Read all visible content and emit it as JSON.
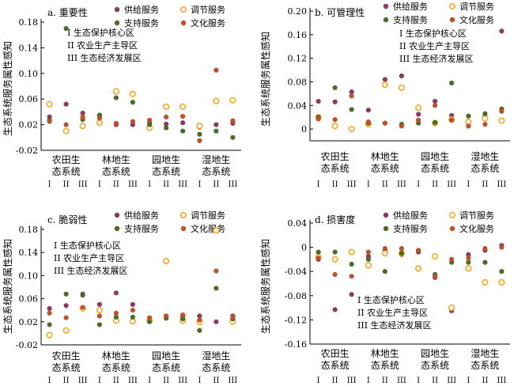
{
  "colors": {
    "supply": "#8b3a62",
    "regulating": "#f5a623",
    "support": "#4b6b2a",
    "cultural": "#c0502a"
  },
  "chart_data": [
    {
      "type": "scatter",
      "title": "a. 重要性",
      "ylabel": "生态系统服务属性感知",
      "ylim": [
        -0.02,
        0.18
      ],
      "yticks": [
        -0.02,
        0.02,
        0.06,
        0.1,
        0.14,
        0.18
      ],
      "ytick_labels": [
        "-0.02",
        "0.02",
        "0.06",
        "0.10",
        "0.14",
        "0.18"
      ],
      "groups": [
        "农田生\n态系统",
        "林地生\n态系统",
        "园地生\n态系统",
        "湿地生\n态系统"
      ],
      "zones": [
        "I",
        "II",
        "III"
      ],
      "zone_legend": [
        "I  生态保护核心区",
        "II  农业生产主导区",
        "III 生态经济发展区"
      ],
      "series": [
        {
          "name": "供给服务",
          "key": "supply",
          "values": [
            0.032,
            0.052,
            0.038,
            0.033,
            0.02,
            0.02,
            0.023,
            0.021,
            0.023,
            0.016,
            0.02,
            0.022
          ]
        },
        {
          "name": "调节服务",
          "key": "regulating",
          "values": [
            0.052,
            0.01,
            0.018,
            0.023,
            0.072,
            0.068,
            0.015,
            0.048,
            0.048,
            0.018,
            0.057,
            0.058
          ]
        },
        {
          "name": "支持服务",
          "key": "support",
          "values": [
            0.027,
            0.17,
            0.028,
            0.035,
            0.062,
            0.055,
            0.02,
            0.015,
            0.01,
            0.005,
            0.01,
            0.0
          ]
        },
        {
          "name": "文化服务",
          "key": "cultural",
          "values": [
            0.025,
            0.02,
            0.032,
            0.03,
            0.022,
            0.025,
            0.027,
            0.032,
            0.033,
            -0.005,
            0.105,
            0.026
          ]
        }
      ]
    },
    {
      "type": "scatter",
      "title": "b. 可管理性",
      "ylabel": "生态系统服务属性感知",
      "ylim": [
        -0.02,
        0.2
      ],
      "yticks": [
        0.0,
        0.04,
        0.08,
        0.12,
        0.16,
        0.2
      ],
      "ytick_labels": [
        "0",
        "0.04",
        "0.08",
        "0.12",
        "0.16",
        "0.20"
      ],
      "groups": [
        "农田生\n态系统",
        "林地生\n态系统",
        "园地生\n态系统",
        "湿地生\n态系统"
      ],
      "zones": [
        "I",
        "II",
        "III"
      ],
      "zone_legend": [
        "I  生态保护核心区",
        "II  农业生产主导区",
        "III 生态经济发展区"
      ],
      "series": [
        {
          "name": "供给服务",
          "key": "supply",
          "values": [
            0.047,
            0.046,
            0.063,
            0.032,
            0.084,
            0.09,
            0.025,
            0.047,
            0.023,
            0.005,
            0.021,
            0.166
          ]
        },
        {
          "name": "调节服务",
          "key": "regulating",
          "values": [
            0.02,
            0.005,
            0.0,
            0.008,
            0.075,
            0.07,
            0.036,
            0.01,
            0.016,
            0.012,
            0.018,
            0.014
          ]
        },
        {
          "name": "支持服务",
          "key": "support",
          "values": [
            0.02,
            0.07,
            0.033,
            0.01,
            0.01,
            0.008,
            0.01,
            0.011,
            0.078,
            0.022,
            0.026,
            0.034
          ]
        },
        {
          "name": "文化服务",
          "key": "cultural",
          "values": [
            0.017,
            0.016,
            0.056,
            0.012,
            0.01,
            0.005,
            0.015,
            0.04,
            0.015,
            0.005,
            0.008,
            0.03
          ]
        }
      ]
    },
    {
      "type": "scatter",
      "title": "c. 脆弱性",
      "ylabel": "生态系统服务属性感知",
      "ylim": [
        -0.02,
        0.18
      ],
      "yticks": [
        -0.02,
        0.02,
        0.06,
        0.1,
        0.14,
        0.18
      ],
      "ytick_labels": [
        "-0.02",
        "0.02",
        "0.06",
        "0.10",
        "0.14",
        "0.18"
      ],
      "groups": [
        "农田生\n态系统",
        "林地生\n态系统",
        "园地生\n态系统",
        "湿地生\n态系统"
      ],
      "zones": [
        "I",
        "II",
        "III"
      ],
      "zone_legend": [
        "I  生态保护核心区",
        "II  农业生产主导区",
        "III 生态经济发展区"
      ],
      "series": [
        {
          "name": "供给服务",
          "key": "supply",
          "values": [
            0.043,
            0.048,
            0.068,
            0.05,
            0.07,
            0.05,
            0.022,
            0.03,
            0.028,
            0.03,
            0.02,
            0.03
          ]
        },
        {
          "name": "调节服务",
          "key": "regulating",
          "values": [
            -0.003,
            0.005,
            0.043,
            0.04,
            0.022,
            0.021,
            0.022,
            0.125,
            0.022,
            0.02,
            0.178,
            0.02
          ]
        },
        {
          "name": "支持服务",
          "key": "support",
          "values": [
            0.015,
            0.068,
            0.066,
            0.015,
            0.028,
            0.028,
            0.02,
            0.026,
            0.025,
            0.005,
            0.078,
            0.025
          ]
        },
        {
          "name": "文化服务",
          "key": "cultural",
          "values": [
            0.035,
            0.027,
            0.045,
            0.03,
            0.035,
            0.04,
            0.027,
            0.03,
            0.032,
            0.023,
            0.108,
            0.028
          ]
        }
      ]
    },
    {
      "type": "scatter",
      "title": "d. 损害度",
      "ylabel": "生态系统服务属性感知",
      "ylim": [
        -0.16,
        0.04
      ],
      "yticks": [
        -0.16,
        -0.12,
        -0.08,
        -0.04,
        0.0,
        0.04
      ],
      "ytick_labels": [
        "-0.16",
        "-0.12",
        "-0.08",
        "-0.04",
        "0",
        "0.04"
      ],
      "groups": [
        "农田生\n态系统",
        "林地生\n态系统",
        "园地生\n态系统",
        "湿地生\n态系统"
      ],
      "zones": [
        "I",
        "II",
        "III"
      ],
      "zone_legend": [
        "I  生态保护核心区",
        "II  农业生产主导区",
        "III 生态经济发展区"
      ],
      "series": [
        {
          "name": "供给服务",
          "key": "supply",
          "values": [
            -0.02,
            -0.103,
            -0.078,
            -0.015,
            -0.005,
            -0.012,
            -0.008,
            -0.05,
            -0.105,
            -0.012,
            -0.005,
            0.003
          ]
        },
        {
          "name": "调节服务",
          "key": "regulating",
          "values": [
            -0.016,
            -0.02,
            -0.008,
            -0.03,
            -0.01,
            -0.01,
            -0.035,
            -0.015,
            -0.1,
            -0.035,
            -0.058,
            -0.058
          ]
        },
        {
          "name": "支持服务",
          "key": "support",
          "values": [
            -0.008,
            -0.008,
            -0.028,
            -0.02,
            -0.04,
            -0.01,
            -0.006,
            -0.045,
            -0.025,
            -0.025,
            -0.025,
            -0.04
          ]
        },
        {
          "name": "文化服务",
          "key": "cultural",
          "values": [
            -0.018,
            -0.045,
            -0.048,
            -0.008,
            -0.002,
            -0.002,
            -0.005,
            -0.048,
            -0.02,
            -0.018,
            -0.002,
            0.0
          ]
        }
      ]
    }
  ]
}
